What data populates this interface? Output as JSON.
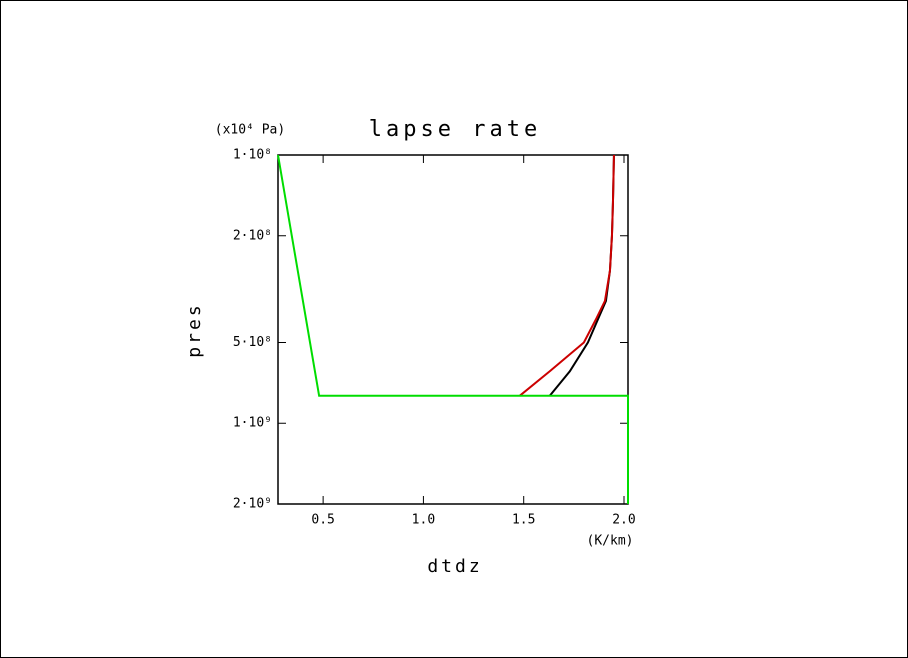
{
  "chart_data": {
    "type": "line",
    "title": "lapse rate",
    "x_label": "dtdz",
    "x_unit": "(K/km)",
    "y_label": "pres",
    "y_unit": "(x10⁴ Pa)",
    "xlim": [
      0.275,
      2.02
    ],
    "ylim": [
      100000000,
      2000000000
    ],
    "y_log": true,
    "y_inverted": true,
    "xticks": [
      0.5,
      {
        "value": 1,
        "label": "1.0"
      },
      1.5,
      {
        "value": 2,
        "label": "2.0"
      }
    ],
    "yticks": [
      {
        "value": 100000000,
        "label": "1·10⁸"
      },
      {
        "value": 200000000,
        "label": "2·10⁸"
      },
      {
        "value": 500000000,
        "label": "5·10⁸"
      },
      {
        "value": 1000000000,
        "label": "1·10⁹"
      },
      {
        "value": 2000000000,
        "label": "2·10⁹"
      }
    ],
    "series": [
      {
        "color": "#000000",
        "x": [
          1.95,
          1.945,
          1.94,
          1.93,
          1.91,
          1.87,
          1.82,
          1.73,
          1.63
        ],
        "values": [
          100000000,
          150000000,
          200000000,
          270000000,
          350000000,
          410000000,
          500000000,
          640000000,
          790000000
        ]
      },
      {
        "color": "#cc0000",
        "x": [
          1.95,
          1.945,
          1.94,
          1.93,
          1.905,
          1.86,
          1.8,
          1.63,
          1.48
        ],
        "values": [
          100000000,
          150000000,
          200000000,
          270000000,
          350000000,
          410000000,
          500000000,
          640000000,
          790000000
        ]
      },
      {
        "color": "#00dd00",
        "x": [
          0.275,
          0.48,
          2.02,
          2.02
        ],
        "values": [
          100000000,
          790000000,
          790000000,
          2000000000
        ]
      }
    ]
  }
}
